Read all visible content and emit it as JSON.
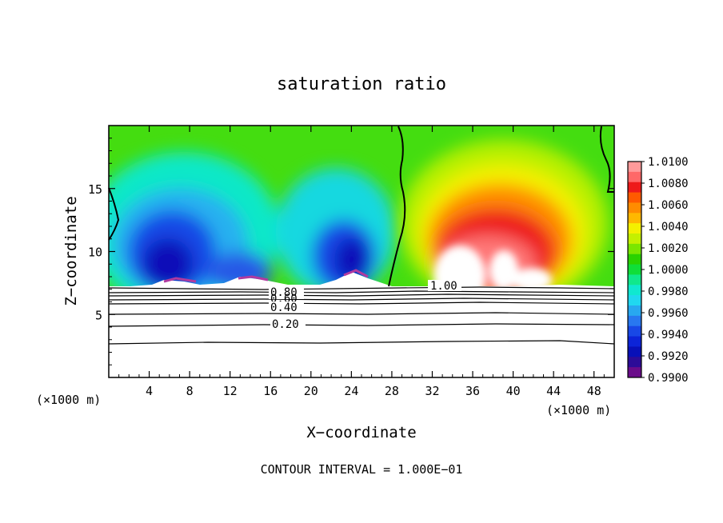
{
  "chart_data": {
    "type": "heatmap",
    "title": "saturation ratio",
    "xlabel": "X−coordinate",
    "ylabel": "Z−coordinate",
    "x_unit_left": "(×1000 m)",
    "x_unit_right": "(×1000 m)",
    "footer": "CONTOUR INTERVAL = 1.000E−01",
    "xlim": [
      0,
      50
    ],
    "ylim": [
      0,
      20
    ],
    "x_ticks": [
      4,
      8,
      12,
      16,
      20,
      24,
      28,
      32,
      36,
      40,
      44,
      48
    ],
    "y_ticks": [
      5,
      10,
      15
    ],
    "grid": false,
    "legend_position": "right",
    "colorbar": {
      "labels": [
        "1.0100",
        "1.0080",
        "1.0060",
        "1.0040",
        "1.0020",
        "1.0000",
        "0.9980",
        "0.9960",
        "0.9940",
        "0.9920",
        "0.9900"
      ],
      "colors": [
        "#ff9a9a",
        "#ff6868",
        "#ee1a1a",
        "#ff5a00",
        "#ff8c00",
        "#ffb800",
        "#f4f000",
        "#c4f000",
        "#7ae600",
        "#2ad200",
        "#10de38",
        "#10e88c",
        "#10e8d0",
        "#20d8f0",
        "#28a8f0",
        "#2878f0",
        "#1848e6",
        "#0c24d8",
        "#0810b8",
        "#2c0c98",
        "#6a0c8a"
      ]
    },
    "contour_labels": [
      "1.00",
      "0.80",
      "0.60",
      "0.40",
      "0.20"
    ],
    "field_regions": [
      {
        "name": "blue-low-left",
        "x": [
          2,
          14
        ],
        "z": [
          7.2,
          14
        ],
        "value": 0.9925
      },
      {
        "name": "blue-low-mid",
        "x": [
          19,
          27
        ],
        "z": [
          7.2,
          12
        ],
        "value": 0.993
      },
      {
        "name": "red-high",
        "x": [
          31,
          47
        ],
        "z": [
          7.2,
          15
        ],
        "value": 1.007
      },
      {
        "name": "green-neutral",
        "x": [
          0,
          50
        ],
        "z": [
          14,
          20
        ],
        "value": 1.0
      }
    ],
    "contours": [
      {
        "level": "1.00",
        "z_mean": 7.2
      },
      {
        "level": "0.80",
        "z_mean": 6.8
      },
      {
        "level": "0.60",
        "z_mean": 6.4
      },
      {
        "level": "0.40",
        "z_mean": 5.8
      },
      {
        "level": "0.20",
        "z_mean": 4.5
      },
      {
        "level": "0.10",
        "z_mean": 2.8
      }
    ]
  }
}
